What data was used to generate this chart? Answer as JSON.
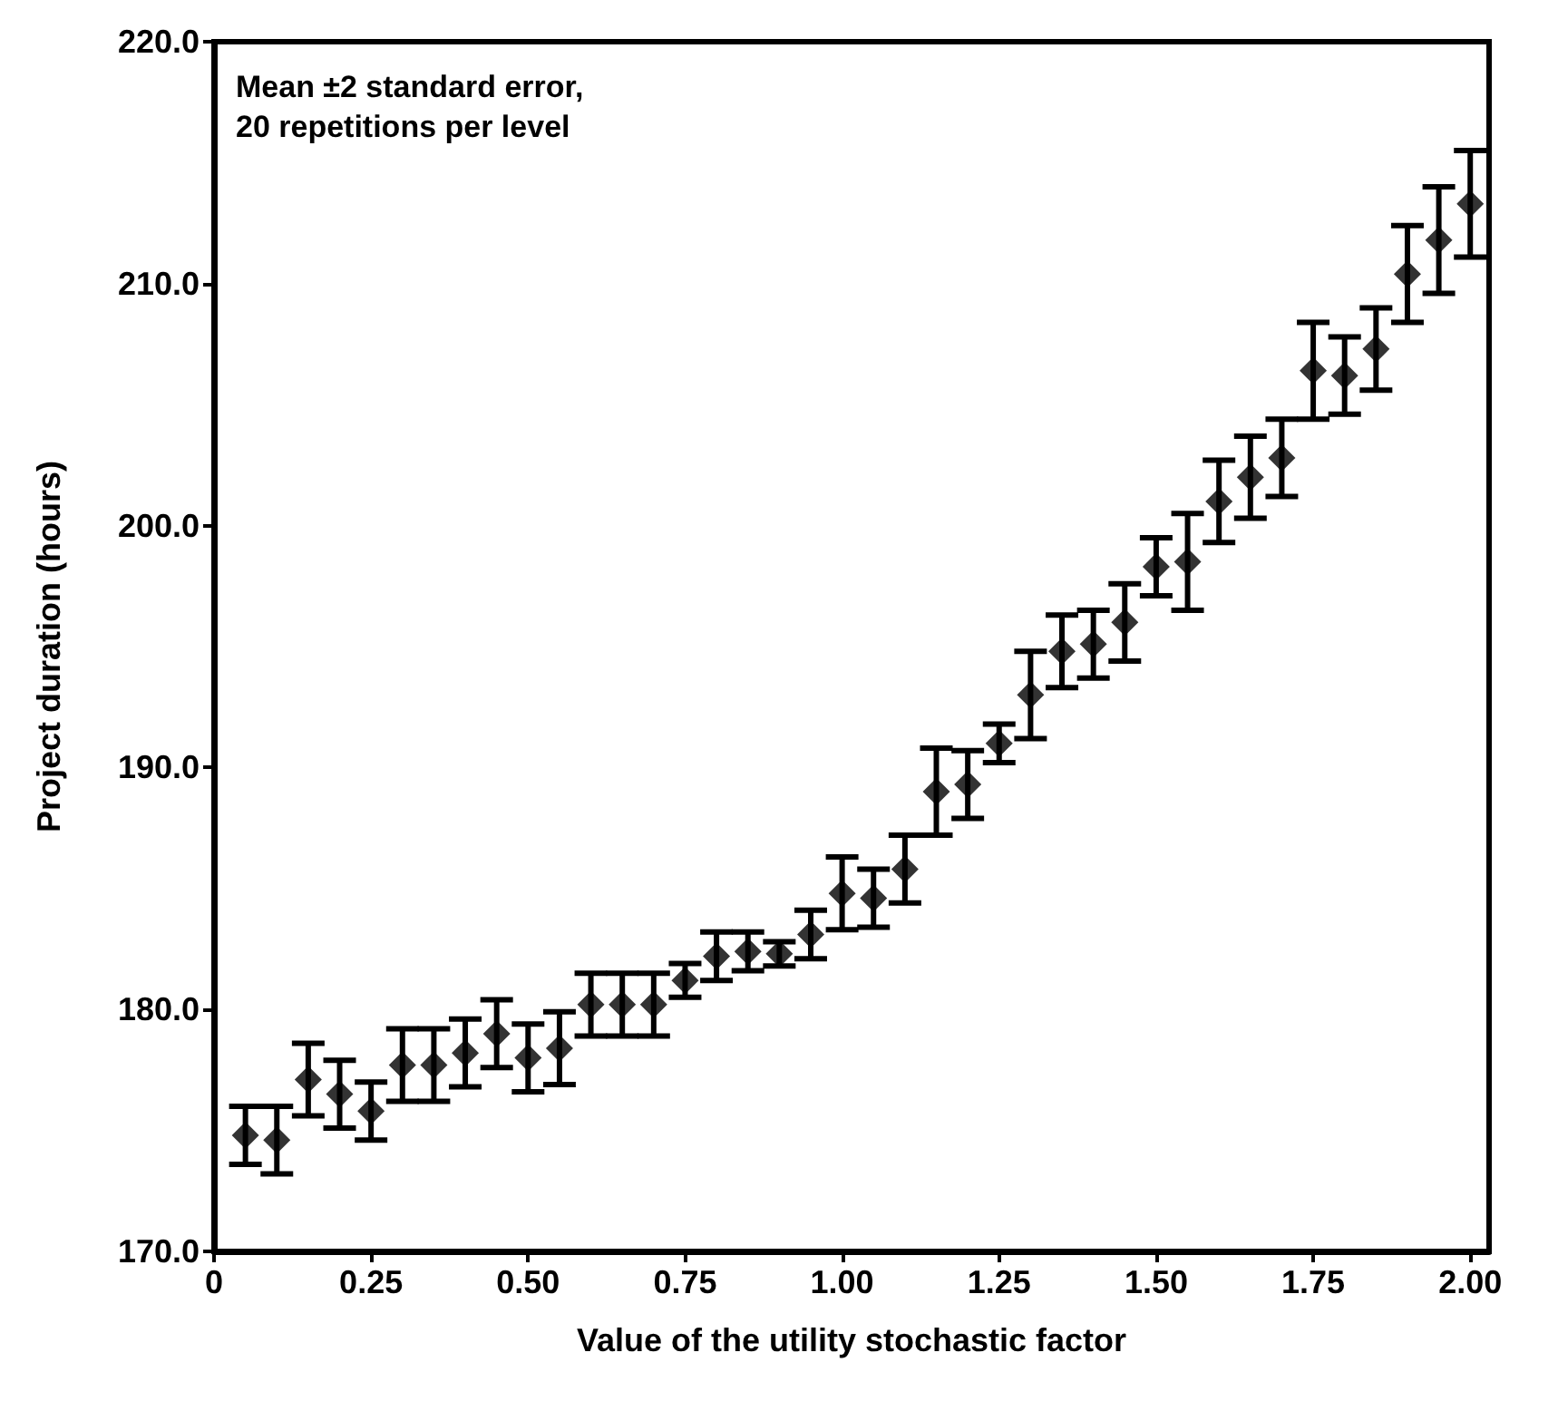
{
  "chart_data": {
    "type": "scatter",
    "xlabel": "Value of the utility stochastic factor",
    "ylabel": "Project duration (hours)",
    "annotations": [
      "Mean ±2 standard error,\n20 repetitions per level"
    ],
    "x": [
      0.05,
      0.1,
      0.15,
      0.2,
      0.25,
      0.3,
      0.35,
      0.4,
      0.45,
      0.5,
      0.55,
      0.6,
      0.65,
      0.7,
      0.75,
      0.8,
      0.85,
      0.9,
      0.95,
      1.0,
      1.05,
      1.1,
      1.15,
      1.2,
      1.25,
      1.3,
      1.35,
      1.4,
      1.45,
      1.5,
      1.55,
      1.6,
      1.65,
      1.7,
      1.75,
      1.8,
      1.85,
      1.9,
      1.95,
      2.0
    ],
    "series": [
      {
        "color": "#000000",
        "values": [
          174.8,
          174.6,
          177.1,
          176.5,
          175.8,
          177.7,
          177.7,
          178.2,
          179.0,
          178.0,
          178.4,
          180.2,
          180.2,
          180.2,
          181.2,
          182.2,
          182.4,
          182.3,
          183.1,
          184.8,
          184.6,
          185.8,
          189.0,
          189.3,
          191.0,
          193.0,
          194.8,
          195.1,
          196.0,
          198.3,
          198.5,
          201.0,
          202.0,
          202.8,
          206.4,
          206.2,
          207.3,
          210.4,
          211.8,
          213.3
        ],
        "errors": [
          1.2,
          1.4,
          1.5,
          1.4,
          1.2,
          1.5,
          1.5,
          1.4,
          1.4,
          1.4,
          1.5,
          1.3,
          1.3,
          1.3,
          0.7,
          1.0,
          0.8,
          0.5,
          1.0,
          1.5,
          1.2,
          1.4,
          1.8,
          1.4,
          0.8,
          1.8,
          1.5,
          1.4,
          1.6,
          1.2,
          2.0,
          1.7,
          1.7,
          1.6,
          2.0,
          1.6,
          1.7,
          2.0,
          2.2,
          2.2
        ]
      }
    ],
    "xlim": [
      0,
      2.03
    ],
    "xticks": [
      0,
      {
        "value": 0.25,
        "label": "0.25"
      },
      {
        "value": 0.5,
        "label": "0.50"
      },
      {
        "value": 0.75,
        "label": "0.75"
      },
      {
        "value": 1,
        "label": "1.00"
      },
      {
        "value": 1.25,
        "label": "1.25"
      },
      {
        "value": 1.5,
        "label": "1.50"
      },
      {
        "value": 1.75,
        "label": "1.75"
      },
      {
        "value": 2,
        "label": "2.00"
      }
    ],
    "ylim": [
      170,
      220
    ],
    "yticks": [
      {
        "value": 170,
        "label": "170.0"
      },
      {
        "value": 180,
        "label": "180.0"
      },
      {
        "value": 190,
        "label": "190.0"
      },
      {
        "value": 200,
        "label": "200.0"
      },
      {
        "value": 210,
        "label": "210.0"
      },
      {
        "value": 220,
        "label": "220.0"
      }
    ],
    "marker": "diamond"
  }
}
